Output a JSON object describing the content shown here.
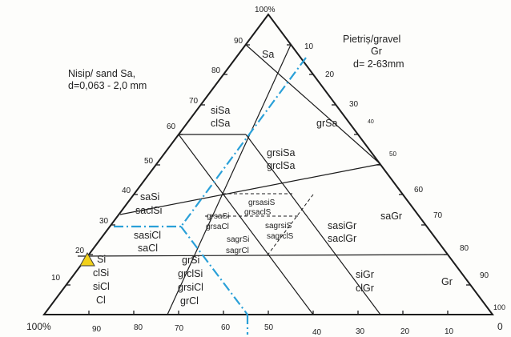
{
  "diagram": {
    "apex_label": "100%",
    "bottom_left_label": "100%",
    "bottom_right_label": "0",
    "left_axis_title": [
      "Nisip/ sand  Sa,",
      "d=0,063 - 2,0 mm"
    ],
    "right_axis_title": [
      "Pietriș/gravel",
      "Gr",
      "d= 2-63mm"
    ],
    "left_ticks": [
      "90",
      "80",
      "70",
      "60",
      "50",
      "40",
      "30",
      "20",
      "10"
    ],
    "right_ticks": [
      "10",
      "20",
      "30",
      "40",
      "50",
      "60",
      "70",
      "80",
      "90",
      "100"
    ],
    "bottom_ticks": [
      "90",
      "80",
      "70",
      "60",
      "50",
      "40",
      "30",
      "20",
      "10"
    ],
    "fields": {
      "sa": [
        "Sa"
      ],
      "sisa": [
        "siSa",
        "clSa"
      ],
      "grsa": [
        "grSa"
      ],
      "grsisa": [
        "grsiSa",
        "grclSa"
      ],
      "sasi": [
        "saSi",
        "saclSi"
      ],
      "grsasi": [
        "grsasiS",
        "grsaclS"
      ],
      "grsasi2": [
        "grsaSi",
        "grsaCl"
      ],
      "sagrsis": [
        "sagrsiS",
        "sagrclS"
      ],
      "sagrsi": [
        "sagrSi",
        "sagrCl"
      ],
      "sasigr": [
        "sasiGr",
        "saclGr"
      ],
      "sagr": [
        "saGr"
      ],
      "sasicl": [
        "sasiCl",
        "saCl"
      ],
      "si": [
        "Si",
        "clSi",
        "siCl",
        "Cl"
      ],
      "grsi": [
        "grSi",
        "grclSi",
        "grsiCl",
        "grCl"
      ],
      "sigr": [
        "siGr",
        "clGr"
      ],
      "gr": [
        "Gr"
      ]
    },
    "colors": {
      "lines": "#1c1c1c",
      "dashdot": "#2aa0d8",
      "marker": "#f2d11a"
    },
    "marker_icon": "warning-triangle"
  }
}
